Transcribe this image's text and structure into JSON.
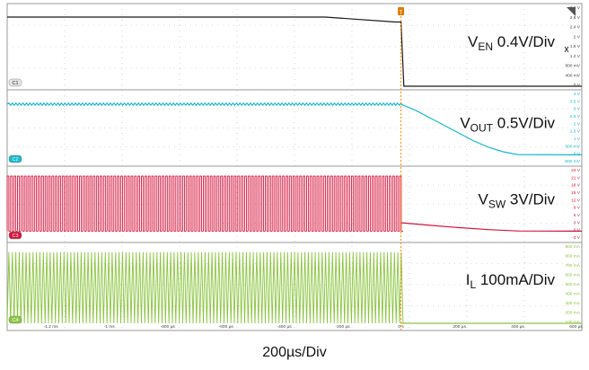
{
  "chart_data": {
    "type": "line",
    "title": "",
    "timebase": "200µs/Div",
    "x_tick_labels": [
      "-1.2 ms",
      "-1 ms",
      "-800 µs",
      "-600 µs",
      "-400 µs",
      "-200 µs",
      "0 s",
      "200 µs",
      "400 µs",
      "600 µs"
    ],
    "trigger_marker": "T",
    "channels": [
      {
        "id": "C1",
        "label_main": "V",
        "label_sub": "EN",
        "label_scale": " 0.4V/Div",
        "color": "#1a1a1a",
        "tick_labels": [
          "3.2 V",
          "2.8 V",
          "2.4 V",
          "2 V",
          "1.6 V",
          "1.2 V",
          "800 mV",
          "400 mV",
          "0 V"
        ],
        "ylim": [
          0,
          3.2
        ],
        "points": [
          [
            -1.35,
            2.8
          ],
          [
            -0.26,
            2.8
          ],
          [
            -0.02,
            2.6
          ],
          [
            0,
            2.6
          ],
          [
            0.01,
            0
          ],
          [
            0.62,
            0
          ]
        ]
      },
      {
        "id": "C2",
        "label_main": "V",
        "label_sub": "OUT",
        "label_scale": " 0.5V/Div",
        "color": "#17b8cc",
        "tick_labels": [
          "4 V",
          "3.5 V",
          "3 V",
          "2.5 V",
          "2 V",
          "1.5 V",
          "1 V",
          "500 mV",
          "0 V",
          "-500 mV"
        ],
        "ylim": [
          -0.5,
          4
        ],
        "points": [
          [
            -1.35,
            3.3
          ],
          [
            0,
            3.3
          ],
          [
            0.05,
            2.9
          ],
          [
            0.1,
            2.4
          ],
          [
            0.15,
            1.9
          ],
          [
            0.2,
            1.4
          ],
          [
            0.25,
            0.9
          ],
          [
            0.3,
            0.5
          ],
          [
            0.35,
            0.2
          ],
          [
            0.4,
            0.02
          ],
          [
            0.62,
            0
          ]
        ]
      },
      {
        "id": "C3",
        "label_main": "V",
        "label_sub": "SW",
        "label_scale": " 3V/Div",
        "color": "#d4143c",
        "tick_labels": [
          "24 V",
          "21 V",
          "18 V",
          "15 V",
          "12 V",
          "9 V",
          "6 V",
          "3 V",
          "0 V",
          "-3 V"
        ],
        "ylim": [
          -3,
          24
        ],
        "switching": {
          "high": 21.5,
          "low": 0,
          "period_ms": 0.0118,
          "start_ms": -1.35,
          "end_ms": 0
        },
        "points": [
          [
            0,
            3.3
          ],
          [
            0.1,
            2.3
          ],
          [
            0.2,
            1.4
          ],
          [
            0.3,
            0.6
          ],
          [
            0.4,
            0.1
          ],
          [
            0.62,
            0
          ]
        ]
      },
      {
        "id": "C4",
        "label_main": "I",
        "label_sub": "L",
        "label_scale": " 100mA/Div",
        "color": "#8bc53f",
        "tick_labels": [
          "900 mA",
          "800 mA",
          "700 mA",
          "600 mA",
          "500 mA",
          "400 mA",
          "300 mA",
          "200 mA",
          "100 mA"
        ],
        "ylim": [
          0,
          900
        ],
        "switching": {
          "high": 830,
          "low": 0,
          "period_ms": 0.0118,
          "start_ms": -1.35,
          "end_ms": 0
        },
        "points": [
          [
            0,
            0
          ],
          [
            0.62,
            0
          ]
        ]
      }
    ]
  }
}
